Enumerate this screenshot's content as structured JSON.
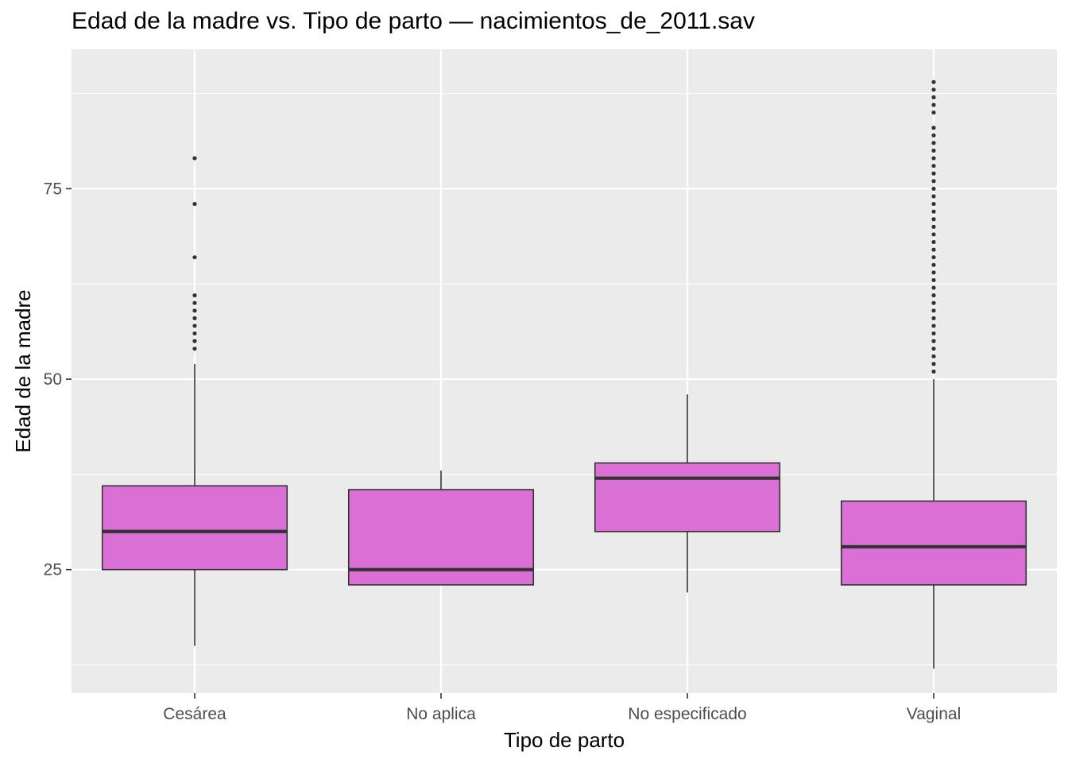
{
  "chart_data": {
    "type": "boxplot",
    "title": "Edad de la madre vs. Tipo de parto — nacimientos_de_2011.sav",
    "xlabel": "Tipo de parto",
    "ylabel": "Edad de la madre",
    "ylim": [
      8.8,
      93.3
    ],
    "y_ticks": [
      25,
      50,
      75
    ],
    "grid": true,
    "colors": {
      "panel": "#EBEBEB",
      "grid": "#FFFFFF",
      "box_fill": "#DA70D6",
      "stroke": "#333333",
      "ticks": "#333333",
      "tick_text": "#4D4D4D"
    },
    "categories": [
      "Cesárea",
      "No aplica",
      "No especificado",
      "Vaginal"
    ],
    "boxes": [
      {
        "category": "Cesárea",
        "whisker_low": 15,
        "q1": 25,
        "median": 30,
        "q3": 36,
        "whisker_high": 52,
        "outliers": [
          54,
          55,
          56,
          57,
          58,
          59,
          60,
          61,
          66,
          73,
          79
        ]
      },
      {
        "category": "No aplica",
        "whisker_low": 23,
        "q1": 23,
        "median": 25,
        "q3": 35.5,
        "whisker_high": 38,
        "outliers": []
      },
      {
        "category": "No especificado",
        "whisker_low": 22,
        "q1": 30,
        "median": 37,
        "q3": 39,
        "whisker_high": 48,
        "outliers": []
      },
      {
        "category": "Vaginal",
        "whisker_low": 12,
        "q1": 23,
        "median": 28,
        "q3": 34,
        "whisker_high": 50,
        "outliers": [
          51,
          52,
          53,
          54,
          55,
          56,
          57,
          58,
          59,
          60,
          61,
          62,
          63,
          64,
          65,
          66,
          67,
          68,
          69,
          70,
          71,
          72,
          73,
          74,
          75,
          76,
          77,
          78,
          79,
          80,
          81,
          82,
          83,
          85,
          86,
          87,
          88,
          89
        ]
      }
    ]
  }
}
